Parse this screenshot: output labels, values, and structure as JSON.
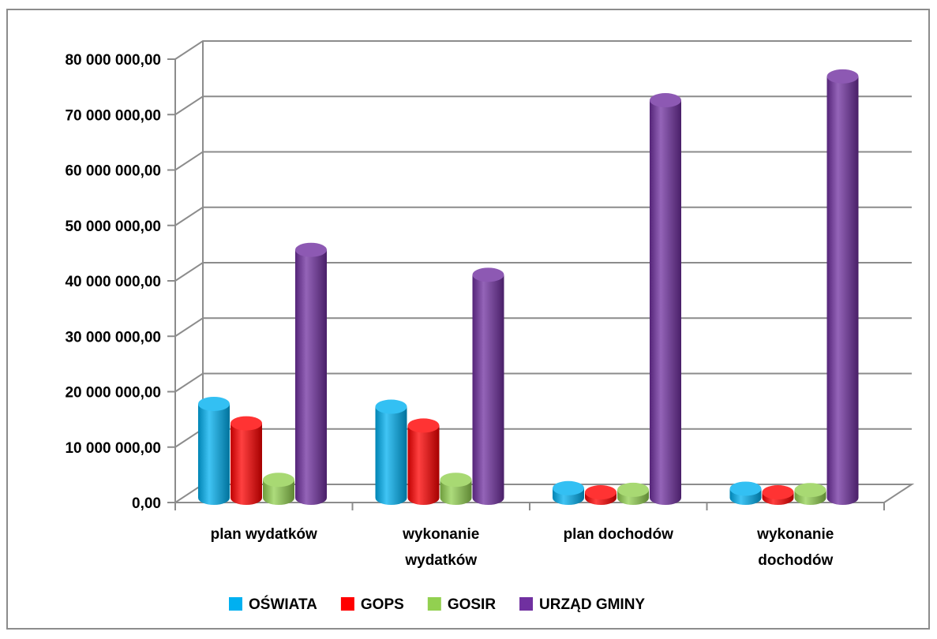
{
  "chart_data": {
    "type": "bar",
    "categories": [
      [
        "plan wydatków"
      ],
      [
        "wykonanie",
        "wydatków"
      ],
      [
        "plan dochodów"
      ],
      [
        "wykonanie",
        "dochodów"
      ]
    ],
    "series": [
      {
        "name": "OŚWIATA",
        "color": "#00B0F0",
        "values": [
          16200000,
          15700000,
          1000000,
          900000
        ]
      },
      {
        "name": "GOPS",
        "color": "#FF0000",
        "values": [
          12700000,
          12300000,
          250000,
          250000
        ]
      },
      {
        "name": "GOSIR",
        "color": "#92D050",
        "values": [
          2500000,
          2500000,
          700000,
          650000
        ]
      },
      {
        "name": "URZĄD GMINY",
        "color": "#7030A0",
        "values": [
          44000000,
          39500000,
          71000000,
          75300000
        ]
      }
    ],
    "yticks": [
      "0,00",
      "10 000 000,00",
      "20 000 000,00",
      "30 000 000,00",
      "40 000 000,00",
      "50 000 000,00",
      "60 000 000,00",
      "70 000 000,00",
      "80 000 000,00"
    ],
    "ylim": [
      0,
      80000000
    ],
    "grid": true,
    "legend_position": "bottom",
    "title": "",
    "xlabel": "",
    "ylabel": ""
  }
}
